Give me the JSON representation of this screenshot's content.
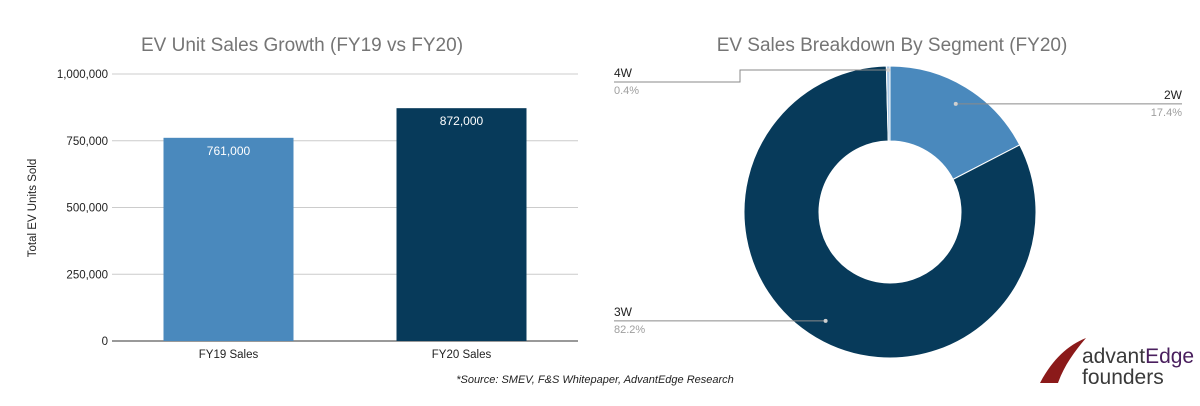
{
  "chart_data": [
    {
      "type": "bar",
      "title": "EV Unit Sales Growth (FY19 vs FY20)",
      "xlabel": "",
      "ylabel": "Total EV Units Sold",
      "ylim": [
        0,
        1000000
      ],
      "yticks": [
        "0",
        "250,000",
        "500,000",
        "750,000",
        "1,000,000"
      ],
      "categories": [
        "FY19 Sales",
        "FY20 Sales"
      ],
      "values": [
        761000,
        872000
      ],
      "value_labels": [
        "761,000",
        "872,000"
      ],
      "colors": [
        "#4a89bd",
        "#073a5a"
      ],
      "grid": true
    },
    {
      "type": "pie",
      "donut": true,
      "title": "EV Sales Breakdown By Segment (FY20)",
      "slices": [
        {
          "label": "2W",
          "value": 17.4,
          "pct_label": "17.4%",
          "color": "#4a89bd"
        },
        {
          "label": "3W",
          "value": 82.2,
          "pct_label": "82.2%",
          "color": "#073a5a"
        },
        {
          "label": "4W",
          "value": 0.4,
          "pct_label": "0.4%",
          "color": "#a9c8e6"
        }
      ]
    }
  ],
  "source_note": "*Source: SMEV, F&S Whitepaper, AdvantEdge Research",
  "logo": {
    "line1_a": "advant",
    "line1_b": "Edge",
    "line2": "founders"
  },
  "colors": {
    "accent": "#8b1a1a",
    "logo_purple": "#4a1f5e"
  }
}
